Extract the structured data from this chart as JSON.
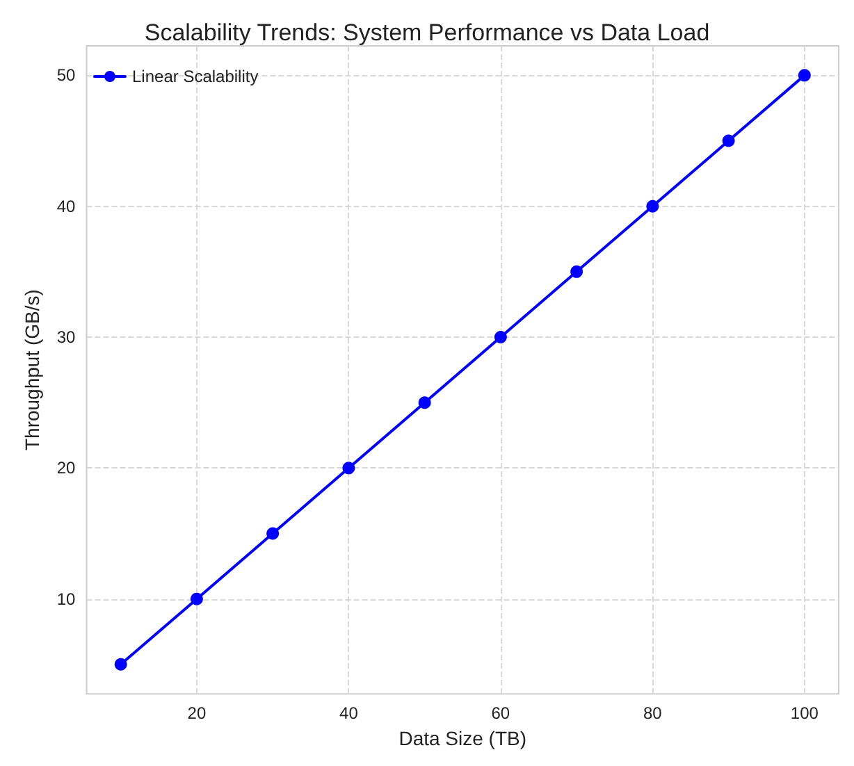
{
  "chart_data": {
    "type": "line",
    "title": "Scalability Trends: System Performance vs Data Load",
    "xlabel": "Data Size (TB)",
    "ylabel": "Throughput (GB/s)",
    "x": [
      10,
      20,
      30,
      40,
      50,
      60,
      70,
      80,
      90,
      100
    ],
    "series": [
      {
        "name": "Linear Scalability",
        "color": "#0000ff",
        "values": [
          5,
          10,
          15,
          20,
          25,
          30,
          35,
          40,
          45,
          50
        ]
      }
    ],
    "xlim": [
      5.5,
      104.5
    ],
    "ylim": [
      2.75,
      52.25
    ],
    "xticks": [
      20,
      40,
      60,
      80,
      100
    ],
    "yticks": [
      10,
      20,
      30,
      40,
      50
    ],
    "grid": true,
    "legend": "top left",
    "marker": "circle",
    "line_style": "solid"
  }
}
